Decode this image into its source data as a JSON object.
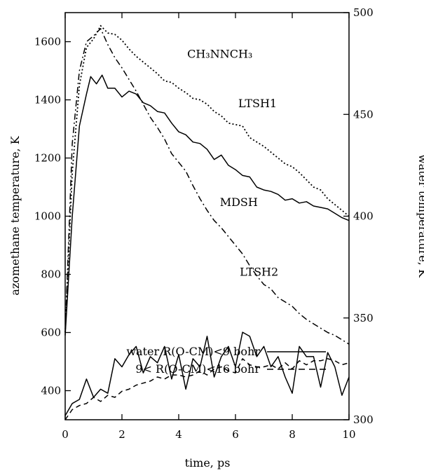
{
  "chart_data": {
    "type": "line",
    "title": "",
    "xlabel": "time, ps",
    "ylabel_left": "azomethane temperature, K",
    "ylabel_right": "water temperature, K",
    "xlim": [
      0,
      10
    ],
    "ylim_left": [
      300,
      1700
    ],
    "ylim_right": [
      300,
      500
    ],
    "x_ticks": [
      0,
      2,
      4,
      6,
      8,
      10
    ],
    "y_ticks_left": [
      400,
      600,
      800,
      1000,
      1200,
      1400,
      1600
    ],
    "y_ticks_right": [
      300,
      350,
      400,
      450,
      500
    ],
    "annotations": [
      {
        "id": "ch3",
        "text": "CH₃NNCH₃",
        "x": 4.3,
        "y": 1545
      },
      {
        "id": "ltsh1",
        "text": "LTSH1",
        "x": 6.1,
        "y": 1375
      },
      {
        "id": "mdsh",
        "text": "MDSH",
        "x": 5.45,
        "y": 1035
      },
      {
        "id": "ltsh2",
        "text": "LTSH2",
        "x": 6.15,
        "y": 795
      }
    ],
    "legend": [
      {
        "label": "water R(O-CM)<9 bohr",
        "style": "solid"
      },
      {
        "label": "9< R(O-CM)<16 bohr",
        "style": "dashed"
      }
    ],
    "series": [
      {
        "name": "LTSH1",
        "axis": "left",
        "style": "dotted",
        "x": [
          0,
          0.25,
          0.5,
          0.75,
          1.0,
          1.25,
          1.5,
          1.75,
          2.0,
          2.25,
          2.5,
          2.75,
          3.0,
          3.25,
          3.5,
          3.75,
          4.0,
          4.25,
          4.5,
          4.75,
          5.0,
          5.25,
          5.5,
          5.75,
          6.0,
          6.25,
          6.5,
          6.75,
          7.0,
          7.25,
          7.5,
          7.75,
          8.0,
          8.25,
          8.5,
          8.75,
          9.0,
          9.25,
          9.5,
          9.75,
          10.0
        ],
        "values": [
          600,
          1150,
          1450,
          1580,
          1610,
          1655,
          1630,
          1625,
          1605,
          1575,
          1550,
          1530,
          1510,
          1490,
          1465,
          1460,
          1440,
          1425,
          1405,
          1400,
          1385,
          1360,
          1345,
          1320,
          1315,
          1310,
          1270,
          1255,
          1240,
          1220,
          1200,
          1180,
          1170,
          1150,
          1125,
          1100,
          1090,
          1060,
          1040,
          1020,
          1000
        ]
      },
      {
        "name": "MDSH",
        "axis": "left",
        "style": "solid",
        "x": [
          0,
          0.25,
          0.5,
          0.75,
          0.9,
          1.1,
          1.3,
          1.5,
          1.75,
          2.0,
          2.25,
          2.5,
          2.75,
          3.0,
          3.25,
          3.5,
          3.75,
          4.0,
          4.25,
          4.5,
          4.75,
          5.0,
          5.25,
          5.5,
          5.75,
          6.0,
          6.25,
          6.5,
          6.75,
          7.0,
          7.25,
          7.5,
          7.75,
          8.0,
          8.25,
          8.5,
          8.75,
          9.0,
          9.25,
          9.5,
          9.75,
          10.0
        ],
        "values": [
          590,
          1000,
          1310,
          1420,
          1480,
          1455,
          1485,
          1440,
          1440,
          1410,
          1430,
          1420,
          1390,
          1380,
          1360,
          1355,
          1320,
          1290,
          1280,
          1255,
          1250,
          1230,
          1195,
          1210,
          1175,
          1160,
          1140,
          1135,
          1100,
          1090,
          1085,
          1075,
          1055,
          1060,
          1045,
          1050,
          1035,
          1030,
          1025,
          1010,
          995,
          985
        ]
      },
      {
        "name": "LTSH2",
        "axis": "left",
        "style": "dashdot",
        "x": [
          0,
          0.25,
          0.5,
          0.75,
          1.0,
          1.25,
          1.5,
          1.75,
          2.0,
          2.25,
          2.5,
          2.75,
          3.0,
          3.25,
          3.5,
          3.75,
          4.0,
          4.25,
          4.5,
          4.75,
          5.0,
          5.25,
          5.5,
          5.75,
          6.0,
          6.25,
          6.5,
          6.75,
          7.0,
          7.25,
          7.5,
          7.75,
          8.0,
          8.25,
          8.5,
          8.75,
          9.0,
          9.25,
          9.5,
          9.75,
          10.0
        ],
        "values": [
          600,
          1250,
          1500,
          1600,
          1620,
          1645,
          1590,
          1545,
          1510,
          1470,
          1430,
          1385,
          1340,
          1305,
          1265,
          1215,
          1185,
          1155,
          1105,
          1060,
          1020,
          985,
          960,
          930,
          900,
          870,
          830,
          795,
          765,
          750,
          720,
          705,
          690,
          665,
          645,
          630,
          615,
          600,
          590,
          575,
          560
        ]
      },
      {
        "name": "water R(O-CM)<9 bohr",
        "axis": "right",
        "style": "solid",
        "x": [
          0,
          0.25,
          0.5,
          0.75,
          1.0,
          1.25,
          1.5,
          1.75,
          2.0,
          2.25,
          2.5,
          2.75,
          3.0,
          3.25,
          3.5,
          3.75,
          4.0,
          4.25,
          4.5,
          4.75,
          5.0,
          5.25,
          5.5,
          5.75,
          6.0,
          6.25,
          6.5,
          6.75,
          7.0,
          7.25,
          7.5,
          7.75,
          8.0,
          8.25,
          8.5,
          8.75,
          9.0,
          9.25,
          9.5,
          9.75,
          10.0
        ],
        "values": [
          302,
          308,
          310,
          320,
          311,
          315,
          313,
          330,
          326,
          332,
          336,
          323,
          331,
          328,
          336,
          320,
          332,
          315,
          330,
          326,
          341,
          321,
          331,
          336,
          326,
          343,
          341,
          331,
          336,
          326,
          331,
          321,
          313,
          336,
          331,
          331,
          316,
          333,
          326,
          312,
          321
        ]
      },
      {
        "name": "9< R(O-CM)<16 bohr",
        "axis": "right",
        "style": "dashed",
        "x": [
          0,
          0.25,
          0.5,
          0.75,
          1.0,
          1.25,
          1.5,
          1.75,
          2.0,
          2.25,
          2.5,
          2.75,
          3.0,
          3.25,
          3.5,
          3.75,
          4.0,
          4.25,
          4.5,
          4.75,
          5.0,
          5.25,
          5.5,
          5.75,
          6.0,
          6.25,
          6.5,
          6.75,
          7.0,
          7.25,
          7.5,
          7.75,
          8.0,
          8.25,
          8.5,
          8.75,
          9.0,
          9.25,
          9.5,
          9.75,
          10.0
        ],
        "values": [
          300,
          305,
          307,
          308,
          311,
          309,
          312,
          311,
          314,
          315,
          317,
          318,
          319,
          321,
          320,
          322,
          322,
          321,
          322,
          324,
          322,
          325,
          326,
          324,
          323,
          330,
          327,
          326,
          326,
          327,
          325,
          328,
          325,
          329,
          327,
          329,
          329,
          330,
          329,
          327,
          328
        ]
      }
    ]
  }
}
